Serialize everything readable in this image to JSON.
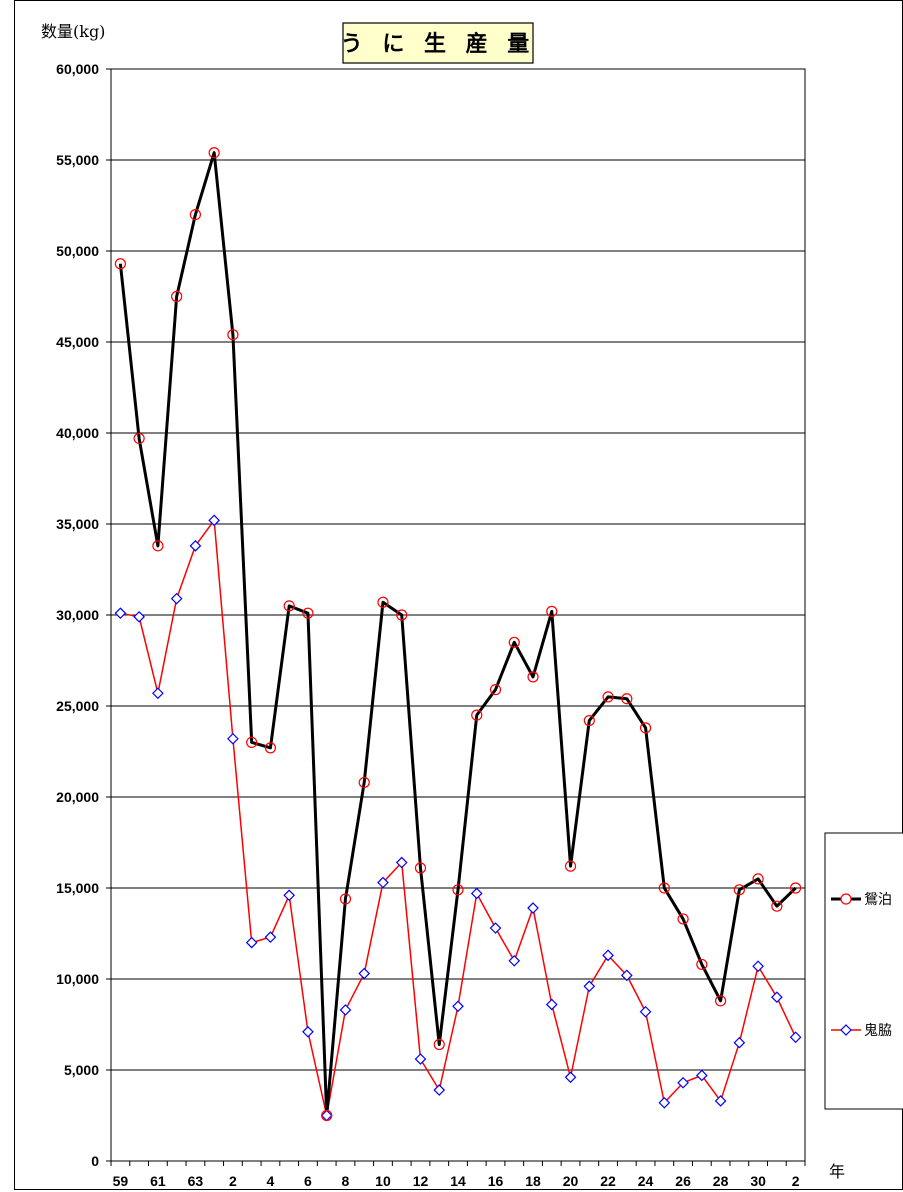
{
  "chart_data": {
    "type": "line",
    "title": "う に 生 産 量",
    "ylabel": "数量(kg)",
    "xlabel": "年",
    "ylim": [
      0,
      60000
    ],
    "yticks": [
      "0",
      "5,000",
      "10,000",
      "15,000",
      "20,000",
      "25,000",
      "30,000",
      "35,000",
      "40,000",
      "45,000",
      "50,000",
      "55,000",
      "60,000"
    ],
    "grid": true,
    "legend_position": "right",
    "x": [
      "59",
      "60",
      "61",
      "62",
      "63",
      "1",
      "2",
      "3",
      "4",
      "5",
      "6",
      "7",
      "8",
      "9",
      "10",
      "11",
      "12",
      "13",
      "14",
      "15",
      "16",
      "17",
      "18",
      "19",
      "20",
      "21",
      "22",
      "23",
      "24",
      "25",
      "26",
      "27",
      "28",
      "29",
      "30",
      "31",
      "2"
    ],
    "xtick_labels": [
      "59",
      "",
      "61",
      "",
      "63",
      "",
      "2",
      "",
      "4",
      "",
      "6",
      "",
      "8",
      "",
      "10",
      "",
      "12",
      "",
      "14",
      "",
      "16",
      "",
      "18",
      "",
      "20",
      "",
      "22",
      "",
      "24",
      "",
      "26",
      "",
      "28",
      "",
      "30",
      "",
      "2"
    ],
    "series": [
      {
        "name": "鴛泊",
        "color": "#000000",
        "marker_color": "#ff0000",
        "marker": "circle",
        "values": [
          49300,
          39700,
          33800,
          47500,
          52000,
          55400,
          45400,
          23000,
          22700,
          30500,
          30100,
          2500,
          14400,
          20800,
          30700,
          30000,
          16100,
          6400,
          14900,
          24500,
          25900,
          28500,
          26600,
          30200,
          16200,
          24200,
          25500,
          25400,
          23800,
          15000,
          13300,
          10800,
          8800,
          14900,
          15500,
          14000,
          15000
        ]
      },
      {
        "name": "鬼脇",
        "color": "#ff0000",
        "marker_color": "#0000ff",
        "marker": "diamond",
        "values": [
          30100,
          29900,
          25700,
          30900,
          33800,
          35200,
          23200,
          12000,
          12300,
          14600,
          7100,
          2500,
          8300,
          10300,
          15300,
          16400,
          5600,
          3900,
          8500,
          14700,
          12800,
          11000,
          13900,
          8600,
          4600,
          9600,
          11300,
          10200,
          8200,
          3200,
          4300,
          4700,
          3300,
          6500,
          10700,
          9000,
          6800
        ]
      }
    ]
  }
}
